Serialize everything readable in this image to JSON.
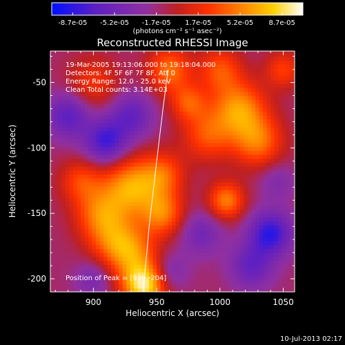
{
  "chart_data": {
    "type": "heatmap",
    "title": "Reconstructed RHESSI Image",
    "xlabel": "Heliocentric X (arcsec)",
    "ylabel": "Heliocentric Y (arcsec)",
    "xlim": [
      866,
      1059
    ],
    "ylim": [
      -210,
      -26
    ],
    "x_ticks": [
      900,
      950,
      1000,
      1050
    ],
    "y_ticks": [
      -50,
      -100,
      -150,
      -200
    ],
    "colorbar": {
      "ticks": [
        "-8.7e-05",
        "-5.2e-05",
        "-1.7e-05",
        "1.7e-05",
        "5.2e-05",
        "8.7e-05"
      ],
      "range": [
        -8.7e-05,
        8.7e-05
      ],
      "units": "(photons cm⁻² s⁻¹ asec⁻²)",
      "colors": [
        "#0010ff",
        "#6020c0",
        "#9030a0",
        "#c02020",
        "#ff3000",
        "#ff8000",
        "#ffd000",
        "#ffffff"
      ]
    },
    "annotations": [
      "19-Mar-2005 19:13:06.000 to 19:18:04.000",
      "Detectors: 4F 5F 6F 7F 8F, Att 0",
      "Energy Range: 12.0 - 25.0 keV",
      "Clean     Total counts: 3.14E+03"
    ],
    "peak_label": "Position of Peak = [939,-204]",
    "limb_points": [
      [
        939.4,
        -210
      ],
      [
        944,
        -160
      ],
      [
        950,
        -110
      ],
      [
        955,
        -70
      ],
      [
        959,
        -40
      ]
    ],
    "peak": [
      939,
      -204
    ],
    "sources": [
      {
        "x": 940,
        "y": -205,
        "v": 8.7e-05,
        "s": 12
      },
      {
        "x": 930,
        "y": -180,
        "v": 5e-05,
        "s": 14
      },
      {
        "x": 930,
        "y": -130,
        "v": 6.5e-05,
        "s": 16
      },
      {
        "x": 905,
        "y": -150,
        "v": 4.5e-05,
        "s": 14
      },
      {
        "x": 890,
        "y": -125,
        "v": 3.5e-05,
        "s": 12
      },
      {
        "x": 915,
        "y": -170,
        "v": 3.5e-05,
        "s": 14
      },
      {
        "x": 955,
        "y": -150,
        "v": 5e-05,
        "s": 12
      },
      {
        "x": 955,
        "y": -120,
        "v": 4e-05,
        "s": 12
      },
      {
        "x": 1005,
        "y": -140,
        "v": 5.5e-05,
        "s": 10
      },
      {
        "x": 1015,
        "y": -70,
        "v": 6e-05,
        "s": 15
      },
      {
        "x": 1030,
        "y": -95,
        "v": 5e-05,
        "s": 14
      },
      {
        "x": 990,
        "y": -90,
        "v": 4e-05,
        "s": 14
      },
      {
        "x": 1000,
        "y": -40,
        "v": 4e-05,
        "s": 12
      },
      {
        "x": 960,
        "y": -40,
        "v": 5e-05,
        "s": 12
      },
      {
        "x": 975,
        "y": -65,
        "v": 4e-05,
        "s": 10
      },
      {
        "x": 900,
        "y": -50,
        "v": 3e-05,
        "s": 14
      },
      {
        "x": 1050,
        "y": -40,
        "v": 3.5e-05,
        "s": 10
      },
      {
        "x": 1040,
        "y": -165,
        "v": -6e-05,
        "s": 12
      },
      {
        "x": 1025,
        "y": -190,
        "v": -4e-05,
        "s": 12
      },
      {
        "x": 910,
        "y": -95,
        "v": -5.5e-05,
        "s": 12
      },
      {
        "x": 930,
        "y": -75,
        "v": -4e-05,
        "s": 12
      },
      {
        "x": 880,
        "y": -75,
        "v": -4.5e-05,
        "s": 12
      },
      {
        "x": 985,
        "y": -165,
        "v": -3e-05,
        "s": 12
      },
      {
        "x": 960,
        "y": -195,
        "v": -2.5e-05,
        "s": 10
      },
      {
        "x": 900,
        "y": -200,
        "v": -2.5e-05,
        "s": 10
      },
      {
        "x": 1045,
        "y": -125,
        "v": -2e-05,
        "s": 10
      }
    ],
    "grid": false
  },
  "timestamp": "10-Jul-2013 02:17"
}
